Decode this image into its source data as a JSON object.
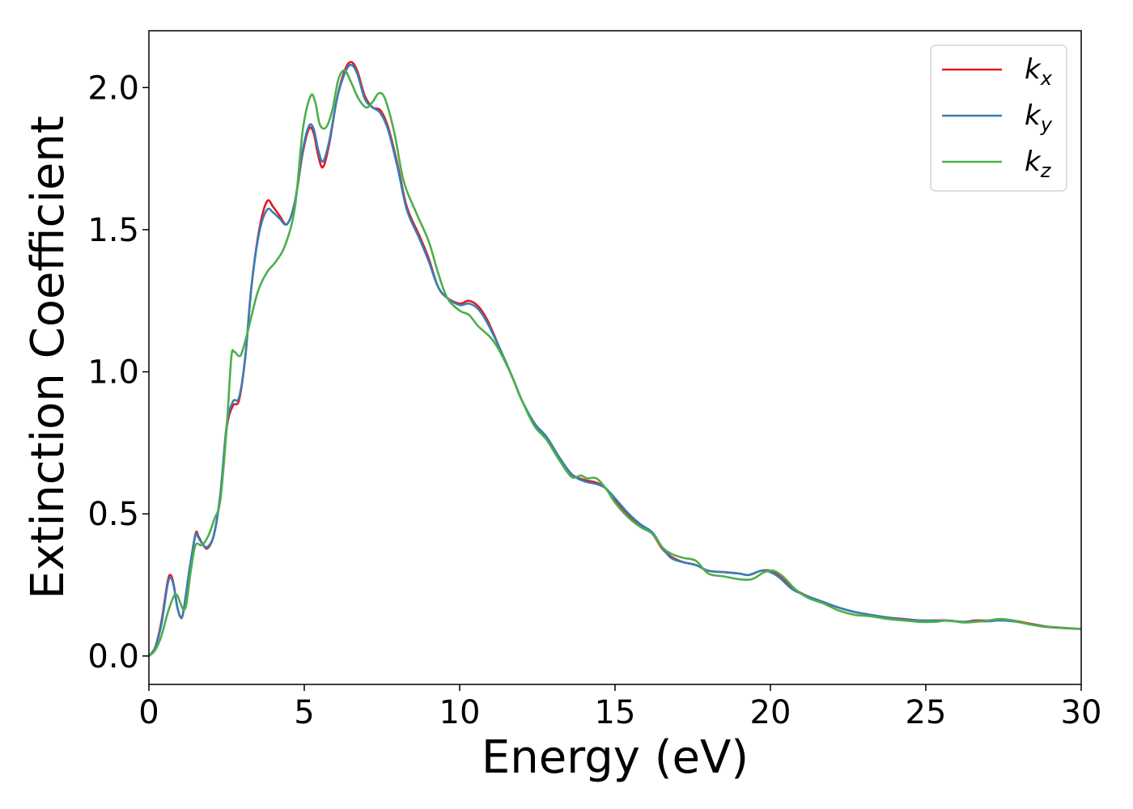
{
  "chart_data": {
    "type": "line",
    "xlabel": "Energy (eV)",
    "ylabel": "Extinction Coefficient",
    "xlim": [
      0,
      30
    ],
    "ylim": [
      -0.1,
      2.2
    ],
    "xticks": [
      0,
      5,
      10,
      15,
      20,
      25,
      30
    ],
    "yticks": [
      0.0,
      0.5,
      1.0,
      1.5,
      2.0
    ],
    "xtick_labels": [
      "0",
      "5",
      "10",
      "15",
      "20",
      "25",
      "30"
    ],
    "ytick_labels": [
      "0.0",
      "0.5",
      "1.0",
      "1.5",
      "2.0"
    ],
    "grid": false,
    "legend_position": "top-right",
    "series": [
      {
        "name": "k",
        "subscript": "x",
        "color": "#e41a1c",
        "points": [
          [
            0,
            0.0
          ],
          [
            0.2,
            0.03
          ],
          [
            0.4,
            0.12
          ],
          [
            0.6,
            0.26
          ],
          [
            0.7,
            0.285
          ],
          [
            0.8,
            0.25
          ],
          [
            0.9,
            0.18
          ],
          [
            1.0,
            0.14
          ],
          [
            1.1,
            0.15
          ],
          [
            1.3,
            0.3
          ],
          [
            1.5,
            0.43
          ],
          [
            1.6,
            0.42
          ],
          [
            1.75,
            0.39
          ],
          [
            1.9,
            0.38
          ],
          [
            2.1,
            0.43
          ],
          [
            2.3,
            0.57
          ],
          [
            2.5,
            0.8
          ],
          [
            2.7,
            0.88
          ],
          [
            2.9,
            0.9
          ],
          [
            3.1,
            1.05
          ],
          [
            3.3,
            1.3
          ],
          [
            3.55,
            1.5
          ],
          [
            3.8,
            1.6
          ],
          [
            4.0,
            1.58
          ],
          [
            4.2,
            1.55
          ],
          [
            4.45,
            1.52
          ],
          [
            4.7,
            1.6
          ],
          [
            4.95,
            1.77
          ],
          [
            5.15,
            1.855
          ],
          [
            5.3,
            1.84
          ],
          [
            5.45,
            1.76
          ],
          [
            5.6,
            1.72
          ],
          [
            5.8,
            1.8
          ],
          [
            6.05,
            1.96
          ],
          [
            6.3,
            2.06
          ],
          [
            6.5,
            2.09
          ],
          [
            6.7,
            2.06
          ],
          [
            6.95,
            1.97
          ],
          [
            7.2,
            1.93
          ],
          [
            7.45,
            1.92
          ],
          [
            7.7,
            1.86
          ],
          [
            8.0,
            1.73
          ],
          [
            8.3,
            1.58
          ],
          [
            8.7,
            1.48
          ],
          [
            9.0,
            1.4
          ],
          [
            9.3,
            1.3
          ],
          [
            9.6,
            1.26
          ],
          [
            10.0,
            1.24
          ],
          [
            10.3,
            1.25
          ],
          [
            10.6,
            1.23
          ],
          [
            10.9,
            1.18
          ],
          [
            11.3,
            1.08
          ],
          [
            11.7,
            0.98
          ],
          [
            12.0,
            0.9
          ],
          [
            12.4,
            0.82
          ],
          [
            12.8,
            0.77
          ],
          [
            13.2,
            0.7
          ],
          [
            13.6,
            0.64
          ],
          [
            14.0,
            0.62
          ],
          [
            14.4,
            0.61
          ],
          [
            14.7,
            0.59
          ],
          [
            15.0,
            0.55
          ],
          [
            15.4,
            0.5
          ],
          [
            15.8,
            0.46
          ],
          [
            16.2,
            0.43
          ],
          [
            16.5,
            0.38
          ],
          [
            16.8,
            0.35
          ],
          [
            17.2,
            0.33
          ],
          [
            17.6,
            0.32
          ],
          [
            18.0,
            0.3
          ],
          [
            18.5,
            0.295
          ],
          [
            19.0,
            0.29
          ],
          [
            19.3,
            0.285
          ],
          [
            19.7,
            0.3
          ],
          [
            20.0,
            0.3
          ],
          [
            20.3,
            0.28
          ],
          [
            20.7,
            0.24
          ],
          [
            21.2,
            0.21
          ],
          [
            21.7,
            0.19
          ],
          [
            22.2,
            0.17
          ],
          [
            22.7,
            0.155
          ],
          [
            23.2,
            0.145
          ],
          [
            23.8,
            0.135
          ],
          [
            24.3,
            0.13
          ],
          [
            24.8,
            0.125
          ],
          [
            25.3,
            0.125
          ],
          [
            25.7,
            0.125
          ],
          [
            26.2,
            0.12
          ],
          [
            26.6,
            0.125
          ],
          [
            27.0,
            0.125
          ],
          [
            27.4,
            0.13
          ],
          [
            27.8,
            0.125
          ],
          [
            28.3,
            0.115
          ],
          [
            28.8,
            0.105
          ],
          [
            29.3,
            0.1
          ],
          [
            30.0,
            0.095
          ]
        ]
      },
      {
        "name": "k",
        "subscript": "y",
        "color": "#377eb8",
        "points": [
          [
            0,
            0.0
          ],
          [
            0.2,
            0.03
          ],
          [
            0.4,
            0.11
          ],
          [
            0.6,
            0.25
          ],
          [
            0.7,
            0.275
          ],
          [
            0.8,
            0.245
          ],
          [
            0.9,
            0.18
          ],
          [
            1.0,
            0.14
          ],
          [
            1.1,
            0.15
          ],
          [
            1.3,
            0.3
          ],
          [
            1.5,
            0.425
          ],
          [
            1.6,
            0.415
          ],
          [
            1.75,
            0.39
          ],
          [
            1.9,
            0.385
          ],
          [
            2.1,
            0.43
          ],
          [
            2.3,
            0.57
          ],
          [
            2.5,
            0.81
          ],
          [
            2.7,
            0.895
          ],
          [
            2.9,
            0.91
          ],
          [
            3.1,
            1.05
          ],
          [
            3.3,
            1.3
          ],
          [
            3.55,
            1.49
          ],
          [
            3.8,
            1.57
          ],
          [
            4.0,
            1.56
          ],
          [
            4.2,
            1.54
          ],
          [
            4.45,
            1.52
          ],
          [
            4.7,
            1.6
          ],
          [
            4.95,
            1.78
          ],
          [
            5.15,
            1.865
          ],
          [
            5.3,
            1.855
          ],
          [
            5.45,
            1.78
          ],
          [
            5.6,
            1.74
          ],
          [
            5.8,
            1.81
          ],
          [
            6.05,
            1.96
          ],
          [
            6.3,
            2.05
          ],
          [
            6.5,
            2.08
          ],
          [
            6.7,
            2.05
          ],
          [
            6.95,
            1.96
          ],
          [
            7.2,
            1.93
          ],
          [
            7.45,
            1.91
          ],
          [
            7.7,
            1.85
          ],
          [
            8.0,
            1.72
          ],
          [
            8.3,
            1.57
          ],
          [
            8.7,
            1.47
          ],
          [
            9.0,
            1.39
          ],
          [
            9.3,
            1.3
          ],
          [
            9.6,
            1.26
          ],
          [
            10.0,
            1.235
          ],
          [
            10.3,
            1.24
          ],
          [
            10.6,
            1.22
          ],
          [
            10.9,
            1.17
          ],
          [
            11.3,
            1.08
          ],
          [
            11.7,
            0.98
          ],
          [
            12.0,
            0.9
          ],
          [
            12.4,
            0.82
          ],
          [
            12.8,
            0.77
          ],
          [
            13.2,
            0.7
          ],
          [
            13.6,
            0.64
          ],
          [
            14.0,
            0.615
          ],
          [
            14.4,
            0.605
          ],
          [
            14.7,
            0.59
          ],
          [
            15.0,
            0.555
          ],
          [
            15.4,
            0.505
          ],
          [
            15.8,
            0.465
          ],
          [
            16.2,
            0.435
          ],
          [
            16.5,
            0.385
          ],
          [
            16.8,
            0.345
          ],
          [
            17.2,
            0.33
          ],
          [
            17.6,
            0.32
          ],
          [
            18.0,
            0.3
          ],
          [
            18.5,
            0.295
          ],
          [
            19.0,
            0.29
          ],
          [
            19.3,
            0.285
          ],
          [
            19.7,
            0.3
          ],
          [
            20.0,
            0.295
          ],
          [
            20.3,
            0.275
          ],
          [
            20.7,
            0.235
          ],
          [
            21.2,
            0.21
          ],
          [
            21.7,
            0.19
          ],
          [
            22.2,
            0.17
          ],
          [
            22.7,
            0.155
          ],
          [
            23.2,
            0.145
          ],
          [
            23.8,
            0.135
          ],
          [
            24.3,
            0.128
          ],
          [
            24.8,
            0.125
          ],
          [
            25.3,
            0.124
          ],
          [
            25.7,
            0.124
          ],
          [
            26.2,
            0.12
          ],
          [
            26.6,
            0.122
          ],
          [
            27.0,
            0.122
          ],
          [
            27.4,
            0.125
          ],
          [
            27.8,
            0.122
          ],
          [
            28.3,
            0.113
          ],
          [
            28.8,
            0.104
          ],
          [
            29.3,
            0.099
          ],
          [
            30.0,
            0.095
          ]
        ]
      },
      {
        "name": "k",
        "subscript": "z",
        "color": "#4daf4a",
        "points": [
          [
            0,
            0.0
          ],
          [
            0.2,
            0.02
          ],
          [
            0.4,
            0.07
          ],
          [
            0.6,
            0.15
          ],
          [
            0.8,
            0.21
          ],
          [
            0.9,
            0.215
          ],
          [
            1.0,
            0.19
          ],
          [
            1.1,
            0.165
          ],
          [
            1.2,
            0.18
          ],
          [
            1.35,
            0.3
          ],
          [
            1.5,
            0.39
          ],
          [
            1.7,
            0.39
          ],
          [
            1.9,
            0.42
          ],
          [
            2.1,
            0.48
          ],
          [
            2.3,
            0.55
          ],
          [
            2.5,
            0.8
          ],
          [
            2.65,
            1.05
          ],
          [
            2.75,
            1.07
          ],
          [
            2.9,
            1.055
          ],
          [
            3.0,
            1.07
          ],
          [
            3.2,
            1.15
          ],
          [
            3.5,
            1.28
          ],
          [
            3.8,
            1.35
          ],
          [
            4.1,
            1.39
          ],
          [
            4.4,
            1.45
          ],
          [
            4.7,
            1.58
          ],
          [
            4.95,
            1.85
          ],
          [
            5.2,
            1.97
          ],
          [
            5.35,
            1.95
          ],
          [
            5.5,
            1.87
          ],
          [
            5.7,
            1.86
          ],
          [
            5.9,
            1.92
          ],
          [
            6.1,
            2.03
          ],
          [
            6.3,
            2.06
          ],
          [
            6.5,
            2.02
          ],
          [
            6.75,
            1.96
          ],
          [
            7.0,
            1.93
          ],
          [
            7.2,
            1.95
          ],
          [
            7.4,
            1.98
          ],
          [
            7.6,
            1.96
          ],
          [
            7.9,
            1.84
          ],
          [
            8.2,
            1.67
          ],
          [
            8.6,
            1.56
          ],
          [
            9.0,
            1.46
          ],
          [
            9.3,
            1.35
          ],
          [
            9.6,
            1.26
          ],
          [
            10.0,
            1.215
          ],
          [
            10.3,
            1.2
          ],
          [
            10.6,
            1.16
          ],
          [
            11.0,
            1.12
          ],
          [
            11.3,
            1.07
          ],
          [
            11.7,
            0.98
          ],
          [
            12.0,
            0.9
          ],
          [
            12.4,
            0.81
          ],
          [
            12.8,
            0.76
          ],
          [
            13.2,
            0.69
          ],
          [
            13.6,
            0.63
          ],
          [
            13.9,
            0.635
          ],
          [
            14.1,
            0.625
          ],
          [
            14.4,
            0.625
          ],
          [
            14.7,
            0.59
          ],
          [
            15.0,
            0.54
          ],
          [
            15.4,
            0.49
          ],
          [
            15.8,
            0.455
          ],
          [
            16.2,
            0.43
          ],
          [
            16.5,
            0.385
          ],
          [
            16.8,
            0.36
          ],
          [
            17.2,
            0.345
          ],
          [
            17.6,
            0.335
          ],
          [
            18.0,
            0.29
          ],
          [
            18.5,
            0.28
          ],
          [
            19.0,
            0.27
          ],
          [
            19.4,
            0.27
          ],
          [
            19.8,
            0.295
          ],
          [
            20.1,
            0.3
          ],
          [
            20.4,
            0.28
          ],
          [
            20.8,
            0.235
          ],
          [
            21.2,
            0.205
          ],
          [
            21.7,
            0.185
          ],
          [
            22.2,
            0.16
          ],
          [
            22.7,
            0.145
          ],
          [
            23.2,
            0.14
          ],
          [
            23.8,
            0.13
          ],
          [
            24.3,
            0.125
          ],
          [
            24.8,
            0.12
          ],
          [
            25.3,
            0.12
          ],
          [
            25.7,
            0.125
          ],
          [
            26.2,
            0.118
          ],
          [
            26.6,
            0.12
          ],
          [
            27.0,
            0.125
          ],
          [
            27.4,
            0.13
          ],
          [
            27.8,
            0.125
          ],
          [
            28.3,
            0.112
          ],
          [
            28.8,
            0.103
          ],
          [
            29.3,
            0.099
          ],
          [
            30.0,
            0.095
          ]
        ]
      }
    ]
  }
}
